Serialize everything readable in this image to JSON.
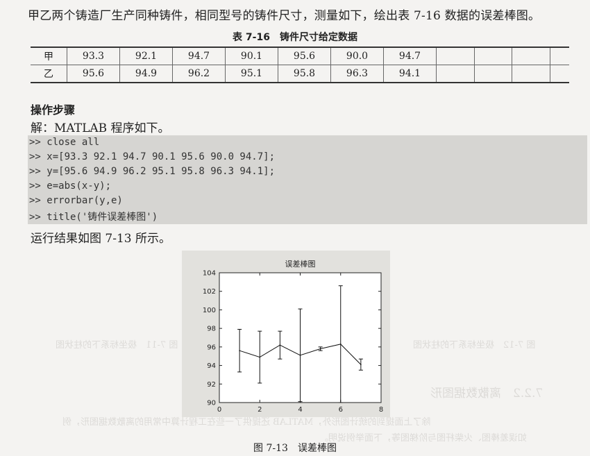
{
  "intro_text": "甲乙两个铸造厂生产同种铸件，相同型号的铸件尺寸，测量如下，绘出表 7-16 数据的误差棒图。",
  "table": {
    "caption": "表 7-16　铸件尺寸给定数据",
    "rows": [
      {
        "label": "甲",
        "values": [
          "93.3",
          "92.1",
          "94.7",
          "90.1",
          "95.6",
          "90.0",
          "94.7"
        ]
      },
      {
        "label": "乙",
        "values": [
          "95.6",
          "94.9",
          "96.2",
          "95.1",
          "95.8",
          "96.3",
          "94.1"
        ]
      }
    ]
  },
  "steps_heading": "操作步骤",
  "solution_intro": "解：MATLAB 程序如下。",
  "code_lines": [
    ">> close all",
    ">> x=[93.3 92.1 94.7 90.1 95.6 90.0 94.7];",
    ">> y=[95.6 94.9 96.2 95.1 95.8 96.3 94.1];",
    ">> e=abs(x-y);",
    ">> errorbar(y,e)",
    ">> title('铸件误差棒图')"
  ],
  "result_text": "运行结果如图 7-13 所示。",
  "figure_caption": "图 7-13　误差棒图",
  "chart_data": {
    "type": "line",
    "title": "误差棒图",
    "x": [
      1,
      2,
      3,
      4,
      5,
      6,
      7
    ],
    "series": [
      {
        "values": [
          95.6,
          94.9,
          96.2,
          95.1,
          95.8,
          96.3,
          94.1
        ],
        "errors": [
          2.3,
          2.8,
          1.5,
          5.0,
          0.2,
          6.3,
          0.6
        ]
      }
    ],
    "xlim": [
      0,
      8
    ],
    "ylim": [
      90,
      104
    ],
    "xticks": [
      "0",
      "2",
      "4",
      "6",
      "8"
    ],
    "yticks": [
      "90",
      "92",
      "94",
      "96",
      "98",
      "100",
      "102",
      "104"
    ],
    "grid": false
  },
  "bleed_through": {
    "heading": "7.2.2　离散数据图形",
    "caption_a": "图 7-11　极坐标系下的柱状图",
    "caption_b": "图 7-12　极坐标系下的柱状图",
    "para_1": "除了上面提到的统计图形外，MATLAB 还提供了一些在工程计算中常用的离散数据图形，例",
    "para_2": "如误差棒图、火柴杆图与阶梯图等，下面举例说明。"
  }
}
